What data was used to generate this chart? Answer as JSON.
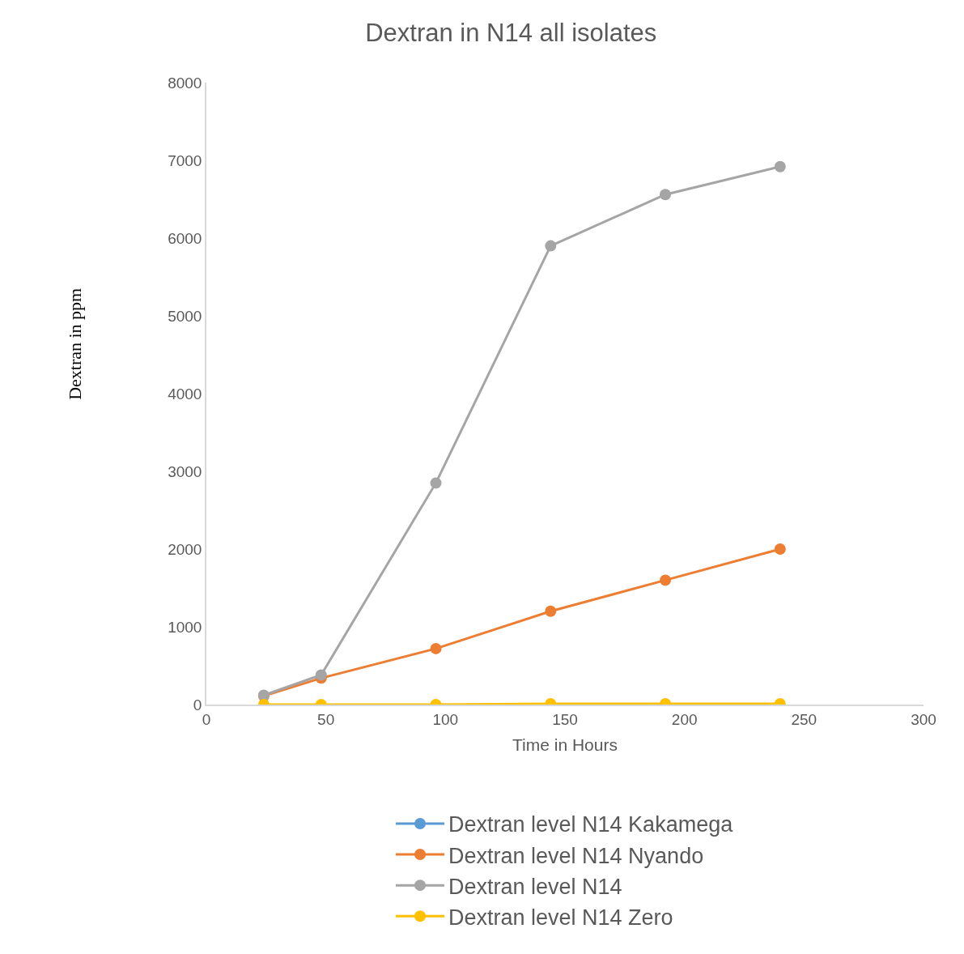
{
  "chart_data": {
    "type": "line",
    "title": "Dextran in N14 all isolates",
    "xlabel": "Time in Hours",
    "ylabel": "Dextran in ppm",
    "x": [
      24,
      48,
      96,
      144,
      192,
      240
    ],
    "series": [
      {
        "name": "Dextran level N14 Kakamega",
        "color": "#5b9bd5",
        "values": [
          null,
          null,
          null,
          null,
          null,
          null
        ]
      },
      {
        "name": "Dextran level N14 Nyando",
        "color": "#ed7d31",
        "values": [
          110,
          340,
          720,
          1200,
          1600,
          2000
        ]
      },
      {
        "name": "Dextran level N14",
        "color": "#a5a5a5",
        "values": [
          120,
          380,
          2850,
          5900,
          6560,
          6920
        ]
      },
      {
        "name": "Dextran level N14 Zero",
        "color": "#ffc000",
        "values": [
          0,
          0,
          0,
          10,
          10,
          10
        ]
      }
    ],
    "xlim": [
      0,
      300
    ],
    "xticks": [
      0,
      50,
      100,
      150,
      200,
      250,
      300
    ],
    "ylim": [
      0,
      8000
    ],
    "yticks": [
      0,
      1000,
      2000,
      3000,
      4000,
      5000,
      6000,
      7000,
      8000
    ],
    "legend": "bottom",
    "marker": "circle",
    "line_style": "solid"
  }
}
